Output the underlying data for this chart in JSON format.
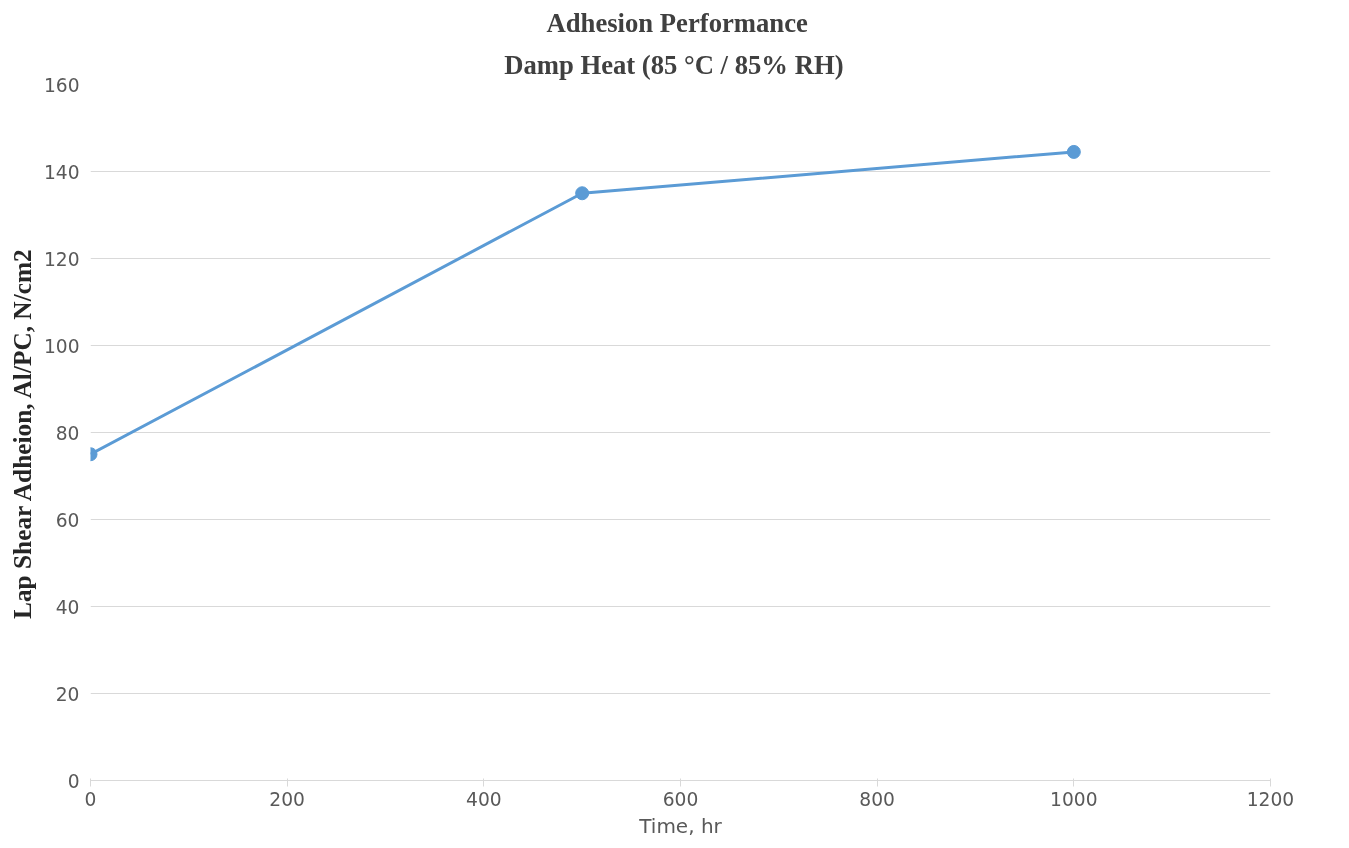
{
  "chart_data": {
    "type": "line",
    "title": "Adhesion  Performance",
    "subtitle": "Damp  Heat  (85 °C / 85% RH)",
    "xlabel": "Time, hr",
    "ylabel": "Lap Shear Adheion, Al/PC, N/cm2",
    "x": [
      0,
      500,
      1000
    ],
    "series": [
      {
        "color": "#5b9bd5",
        "values": [
          75,
          135,
          144.5
        ]
      }
    ],
    "xlim": [
      0,
      1200
    ],
    "xticks": [
      0,
      200,
      400,
      600,
      800,
      1000,
      1200
    ],
    "ylim": [
      0,
      160
    ],
    "yticks": [
      0,
      20,
      40,
      60,
      80,
      100,
      120,
      140,
      160
    ],
    "grid": "y",
    "marker": "circle",
    "line_style": "solid"
  }
}
